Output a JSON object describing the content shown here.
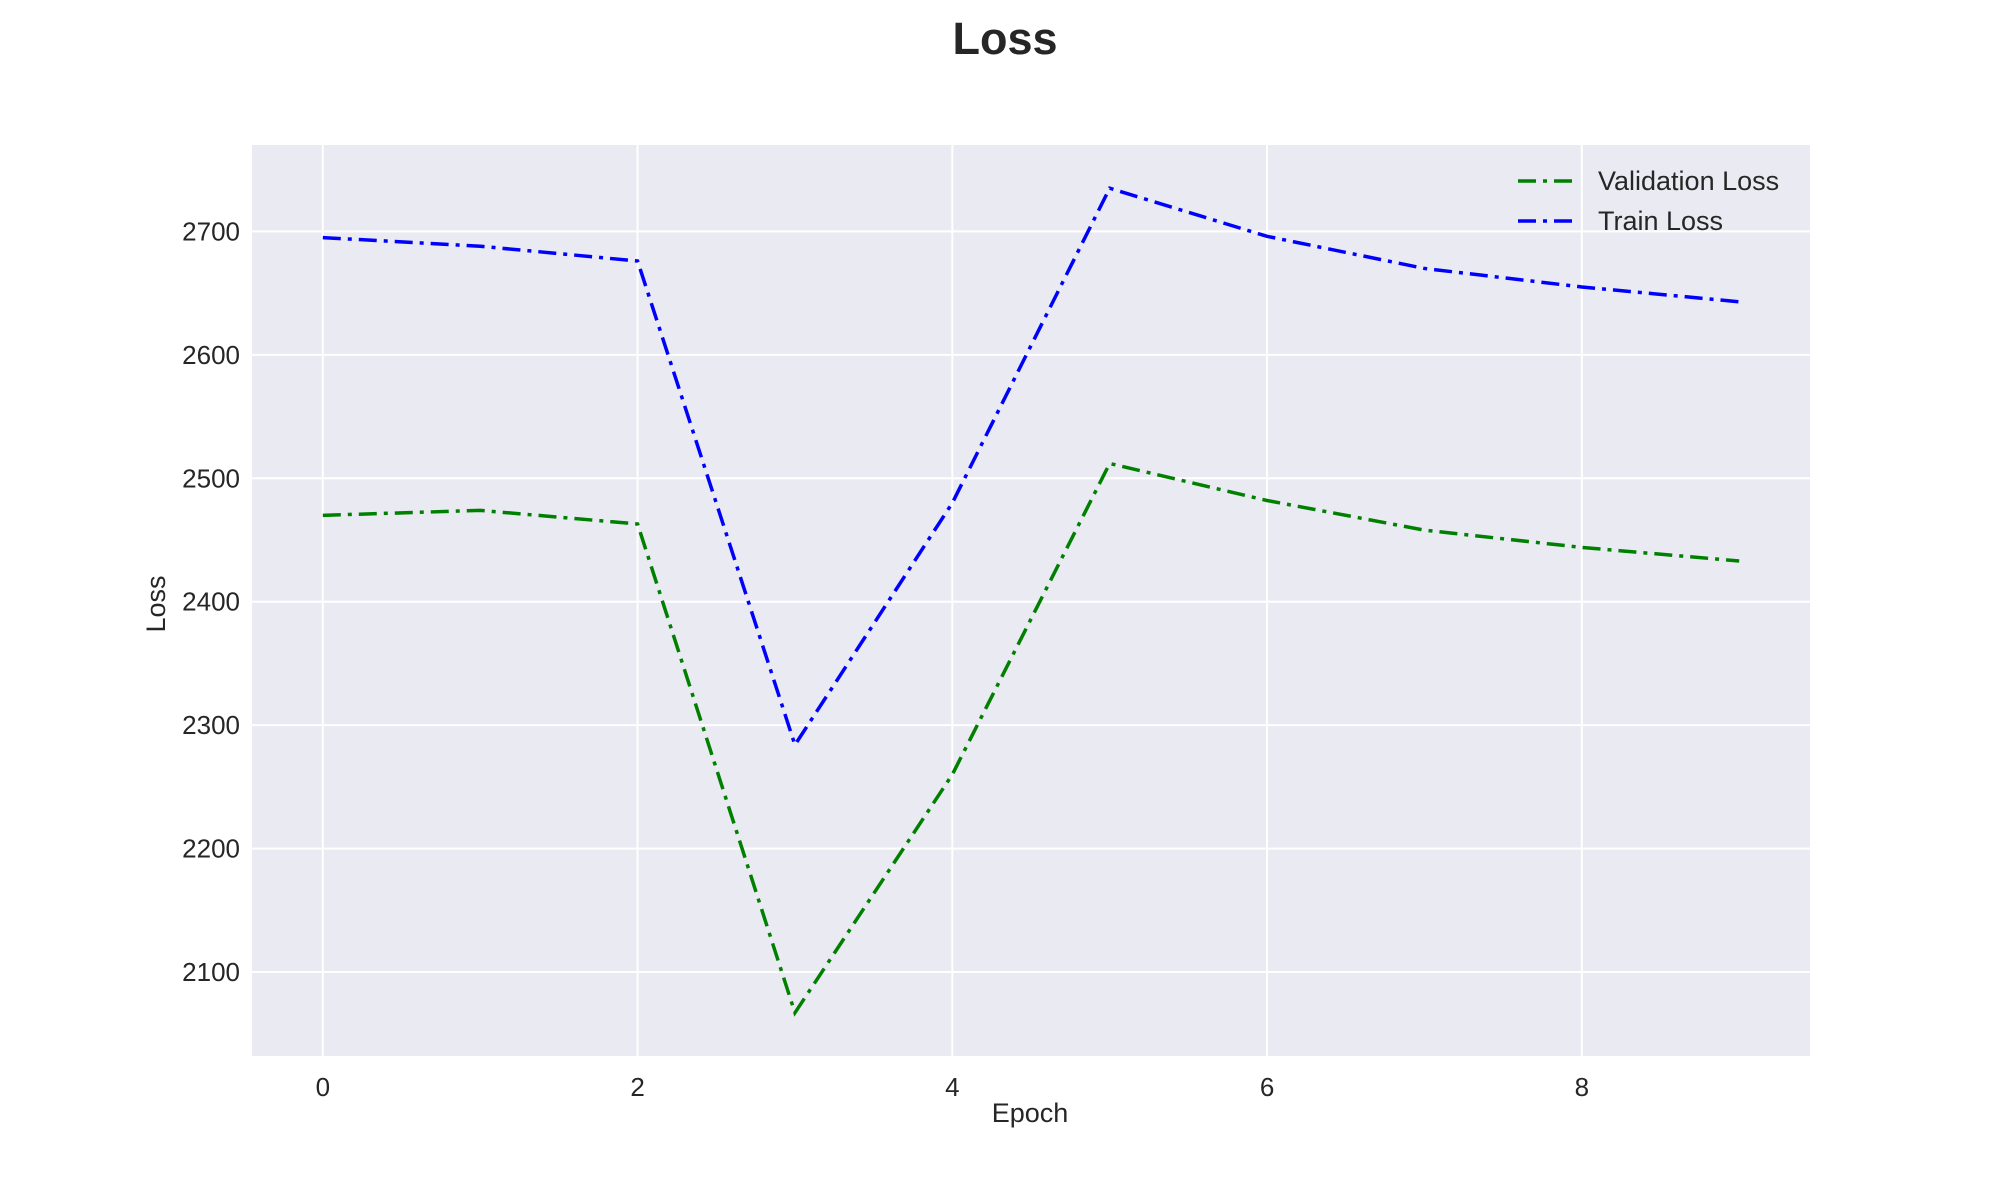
{
  "chart_data": {
    "type": "line",
    "title": "Loss",
    "xlabel": "Epoch",
    "ylabel": "Loss",
    "x": [
      0,
      1,
      2,
      3,
      4,
      5,
      6,
      7,
      8,
      9
    ],
    "xlim": [
      -0.45,
      9.45
    ],
    "ylim": [
      2032,
      2770
    ],
    "xticks": [
      0,
      2,
      4,
      6,
      8
    ],
    "yticks": [
      2100,
      2200,
      2300,
      2400,
      2500,
      2600,
      2700
    ],
    "grid": true,
    "legend_position": "top-right",
    "line_style": "dash-dot",
    "series": [
      {
        "name": "Validation Loss",
        "color": "#008000",
        "values": [
          2470,
          2474,
          2463,
          2067,
          2260,
          2512,
          2482,
          2458,
          2444,
          2433
        ]
      },
      {
        "name": "Train Loss",
        "color": "#0000ff",
        "values": [
          2695,
          2688,
          2676,
          2284,
          2480,
          2735,
          2696,
          2670,
          2655,
          2643
        ]
      }
    ],
    "colors": {
      "plot_background": "#eaeaf2",
      "grid": "#ffffff",
      "text": "#262626"
    }
  }
}
